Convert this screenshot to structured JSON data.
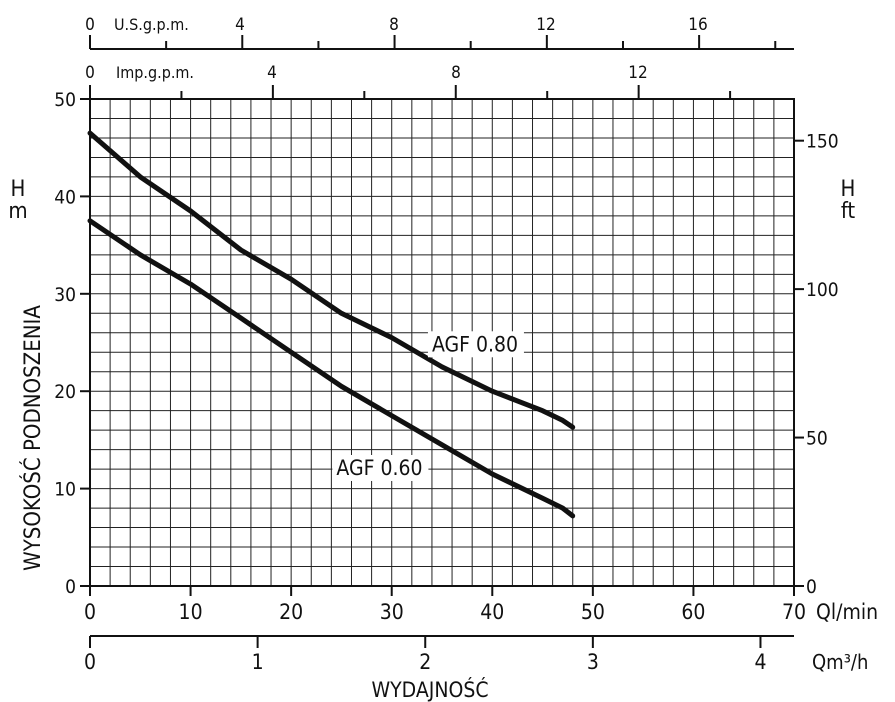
{
  "chart_data": {
    "type": "line",
    "title": "",
    "xlabel": "WYDAJNOŚĆ",
    "ylabel": "WYSOKOŚĆ PODNOSZENIA",
    "xlim": [
      0,
      70
    ],
    "ylim": [
      0,
      50
    ],
    "grid": true,
    "left_axis": {
      "symbol": "H",
      "unit": "m",
      "ticks": [
        "0",
        "10",
        "20",
        "30",
        "40",
        "50"
      ]
    },
    "right_axis": {
      "symbol": "H",
      "unit": "ft",
      "ticks": [
        "0",
        "50",
        "100",
        "150"
      ]
    },
    "bottom_axis_primary": {
      "unit": "Ql/min",
      "ticks": [
        "0",
        "10",
        "20",
        "30",
        "40",
        "50",
        "60",
        "70"
      ]
    },
    "bottom_axis_secondary": {
      "unit": "Qm³/h",
      "ticks": [
        "0",
        "1",
        "2",
        "3",
        "4"
      ]
    },
    "top_axis_us": {
      "unit": "U.S.g.p.m.",
      "ticks": [
        "0",
        "4",
        "8",
        "12",
        "16"
      ]
    },
    "top_axis_imp": {
      "unit": "Imp.g.p.m.",
      "ticks": [
        "0",
        "4",
        "8",
        "12"
      ]
    },
    "series": [
      {
        "name": "AGF 0.80",
        "x": [
          0,
          5,
          10,
          15,
          20,
          25,
          30,
          35,
          40,
          45,
          47,
          48
        ],
        "y": [
          46.5,
          42,
          38.5,
          34.5,
          31.5,
          28,
          25.5,
          22.5,
          20,
          18,
          17,
          16.3
        ]
      },
      {
        "name": "AGF 0.60",
        "x": [
          0,
          5,
          10,
          15,
          20,
          25,
          30,
          35,
          40,
          45,
          47,
          48
        ],
        "y": [
          37.5,
          34,
          31,
          27.5,
          24,
          20.5,
          17.5,
          14.5,
          11.5,
          9,
          8,
          7.2
        ]
      }
    ]
  }
}
